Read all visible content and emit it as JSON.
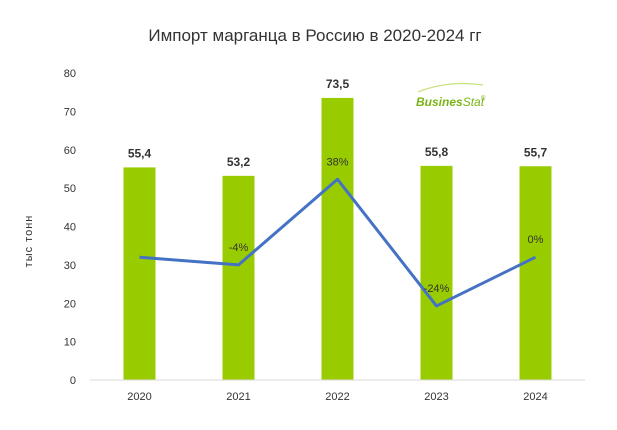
{
  "chart_data": {
    "type": "bar",
    "title": "Импорт марганца в  Россию в 2020-2024 гг",
    "ylabel": "тыс тонн",
    "xlabel": "",
    "ylim": [
      0,
      80
    ],
    "y_ticks": [
      0,
      10,
      20,
      30,
      40,
      50,
      60,
      70,
      80
    ],
    "categories": [
      "2020",
      "2021",
      "2022",
      "2023",
      "2024"
    ],
    "values": [
      55.4,
      53.2,
      73.5,
      55.8,
      55.7
    ],
    "value_labels": [
      "55,4",
      "53,2",
      "73,5",
      "55,8",
      "55,7"
    ],
    "growth_line": {
      "type": "line",
      "points_y": [
        32,
        30,
        52.3,
        19.3,
        32
      ],
      "labels": [
        "",
        "-4%",
        "38%",
        "-24%",
        "0%"
      ]
    },
    "bar_color": "#99cc00",
    "line_color": "#4472c4",
    "grid": false
  },
  "logo": {
    "text_main": "Busines",
    "text_stat": "Stat",
    "mark": "®"
  }
}
